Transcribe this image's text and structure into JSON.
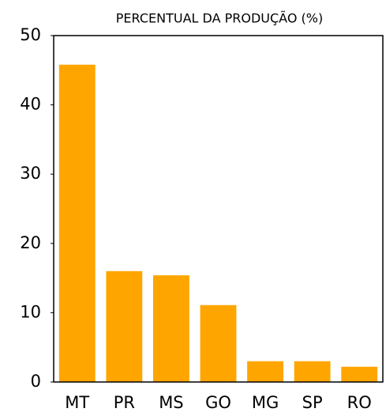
{
  "chart_data": {
    "type": "bar",
    "title": "PERCENTUAL DA PRODUÇÃO (%)",
    "categories": [
      "MT",
      "PR",
      "MS",
      "GO",
      "MG",
      "SP",
      "RO"
    ],
    "values": [
      45.8,
      16.0,
      15.4,
      11.1,
      3.0,
      3.0,
      2.2
    ],
    "color": "#ffa500",
    "ylim": [
      0,
      50
    ],
    "yticks": [
      0,
      10,
      20,
      30,
      40,
      50
    ],
    "grid": false
  }
}
